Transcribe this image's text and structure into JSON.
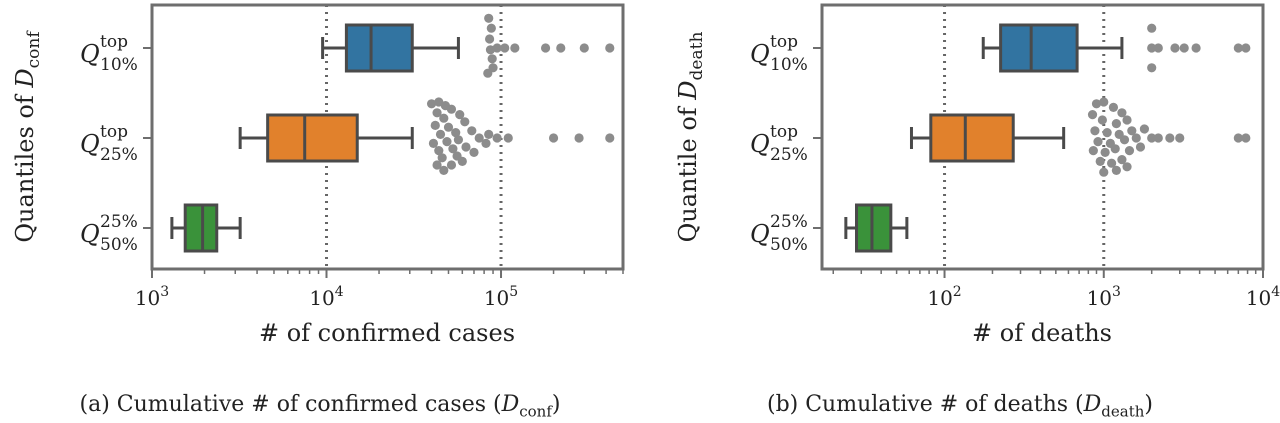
{
  "chart_data": [
    {
      "type": "box",
      "panel": "a",
      "caption": {
        "text": "(a) Cumulative # of confirmed cases (",
        "sym": "D",
        "sub": "conf",
        "close": ")"
      },
      "xlabel": "# of confirmed cases",
      "ylabel": {
        "text": "Quantiles of ",
        "sym": "D",
        "sub": "conf"
      },
      "xscale": "log",
      "xlim": [
        1000,
        500000
      ],
      "xticks": [
        {
          "value": 1000,
          "base": "10",
          "exp": "3"
        },
        {
          "value": 10000,
          "base": "10",
          "exp": "4"
        },
        {
          "value": 100000,
          "base": "10",
          "exp": "5"
        }
      ],
      "vlines": [
        1000,
        10000,
        100000
      ],
      "categories": [
        {
          "q": "Q",
          "sup": "top",
          "sub": "10%"
        },
        {
          "q": "Q",
          "sup": "top",
          "sub": "25%"
        },
        {
          "q": "Q",
          "sup": "25%",
          "sub": "50%"
        }
      ],
      "boxes": [
        {
          "color": "#3274a1",
          "whislo": 9500,
          "q1": 13000,
          "med": 18000,
          "q3": 31000,
          "whishi": 57000
        },
        {
          "color": "#e1812c",
          "whislo": 3200,
          "q1": 4600,
          "med": 7500,
          "q3": 15000,
          "whishi": 31000
        },
        {
          "color": "#3a923a",
          "whislo": 1300,
          "q1": 1550,
          "med": 1950,
          "q3": 2350,
          "whishi": 3200
        }
      ],
      "outliers": [
        {
          "category": 0,
          "points": [
            [
              85000,
              -0.33
            ],
            [
              88000,
              -0.22
            ],
            [
              86000,
              -0.1
            ],
            [
              87000,
              0.02
            ],
            [
              89000,
              0.12
            ],
            [
              90000,
              0.22
            ],
            [
              84000,
              0.28
            ],
            [
              95000,
              0
            ],
            [
              105000,
              0
            ],
            [
              120000,
              0
            ],
            [
              180000,
              0
            ],
            [
              220000,
              0
            ],
            [
              300000,
              0
            ],
            [
              420000,
              0
            ]
          ]
        },
        {
          "category": 1,
          "points": [
            [
              40000,
              -0.38
            ],
            [
              44000,
              -0.4
            ],
            [
              48000,
              -0.36
            ],
            [
              52000,
              -0.32
            ],
            [
              43000,
              -0.28
            ],
            [
              47000,
              -0.22
            ],
            [
              58000,
              -0.26
            ],
            [
              42000,
              -0.14
            ],
            [
              50000,
              -0.12
            ],
            [
              62000,
              -0.18
            ],
            [
              45000,
              -0.04
            ],
            [
              55000,
              -0.06
            ],
            [
              68000,
              -0.08
            ],
            [
              41000,
              0.06
            ],
            [
              49000,
              0.04
            ],
            [
              57000,
              0.02
            ],
            [
              75000,
              0.0
            ],
            [
              44000,
              0.14
            ],
            [
              53000,
              0.12
            ],
            [
              63000,
              0.1
            ],
            [
              46000,
              0.22
            ],
            [
              56000,
              0.2
            ],
            [
              70000,
              0.16
            ],
            [
              43000,
              0.3
            ],
            [
              52000,
              0.3
            ],
            [
              47000,
              0.36
            ],
            [
              60000,
              0.26
            ],
            [
              82000,
              0.06
            ],
            [
              85000,
              -0.04
            ],
            [
              95000,
              0
            ],
            [
              110000,
              0
            ],
            [
              200000,
              0
            ],
            [
              280000,
              0
            ],
            [
              420000,
              0
            ]
          ]
        },
        {
          "category": 2,
          "points": []
        }
      ]
    },
    {
      "type": "box",
      "panel": "b",
      "caption": {
        "text": "(b) Cumulative # of deaths (",
        "sym": "D",
        "sub": "death",
        "close": ")"
      },
      "xlabel": "# of deaths",
      "ylabel": {
        "text": "Quantile of ",
        "sym": "D",
        "sub": "death"
      },
      "xscale": "log",
      "xlim": [
        17,
        10000
      ],
      "xticks": [
        {
          "value": 100,
          "base": "10",
          "exp": "2"
        },
        {
          "value": 1000,
          "base": "10",
          "exp": "3"
        },
        {
          "value": 10000,
          "base": "10",
          "exp": "4"
        }
      ],
      "vlines": [
        100,
        1000
      ],
      "categories": [
        {
          "q": "Q",
          "sup": "top",
          "sub": "10%"
        },
        {
          "q": "Q",
          "sup": "top",
          "sub": "25%"
        },
        {
          "q": "Q",
          "sup": "25%",
          "sub": "50%"
        }
      ],
      "boxes": [
        {
          "color": "#3274a1",
          "whislo": 175,
          "q1": 225,
          "med": 350,
          "q3": 680,
          "whishi": 1300
        },
        {
          "color": "#e1812c",
          "whislo": 62,
          "q1": 82,
          "med": 135,
          "q3": 270,
          "whishi": 560
        },
        {
          "color": "#3a923a",
          "whislo": 24,
          "q1": 28,
          "med": 35,
          "q3": 46,
          "whishi": 58
        }
      ],
      "outliers": [
        {
          "category": 0,
          "points": [
            [
              2000,
              -0.22
            ],
            [
              2000,
              0.22
            ],
            [
              2000,
              0
            ],
            [
              2200,
              0
            ],
            [
              2800,
              0
            ],
            [
              3200,
              0
            ],
            [
              3800,
              0
            ],
            [
              7000,
              0
            ],
            [
              7800,
              0
            ]
          ]
        },
        {
          "category": 1,
          "points": [
            [
              900,
              -0.38
            ],
            [
              1000,
              -0.4
            ],
            [
              1150,
              -0.34
            ],
            [
              1300,
              -0.28
            ],
            [
              850,
              -0.26
            ],
            [
              980,
              -0.2
            ],
            [
              1200,
              -0.16
            ],
            [
              1400,
              -0.2
            ],
            [
              880,
              -0.08
            ],
            [
              1050,
              -0.06
            ],
            [
              1250,
              -0.04
            ],
            [
              1500,
              -0.08
            ],
            [
              920,
              0.04
            ],
            [
              1100,
              0.06
            ],
            [
              1350,
              0.02
            ],
            [
              1600,
              0
            ],
            [
              860,
              0.14
            ],
            [
              1020,
              0.16
            ],
            [
              1180,
              0.12
            ],
            [
              1450,
              0.14
            ],
            [
              950,
              0.26
            ],
            [
              1120,
              0.28
            ],
            [
              1300,
              0.24
            ],
            [
              1000,
              0.38
            ],
            [
              1200,
              0.36
            ],
            [
              1400,
              0.32
            ],
            [
              1700,
              0.1
            ],
            [
              1800,
              -0.1
            ],
            [
              2000,
              0
            ],
            [
              2200,
              0
            ],
            [
              2600,
              0
            ],
            [
              3000,
              0
            ],
            [
              7000,
              0
            ],
            [
              7800,
              0
            ]
          ]
        },
        {
          "category": 2,
          "points": []
        }
      ]
    }
  ]
}
